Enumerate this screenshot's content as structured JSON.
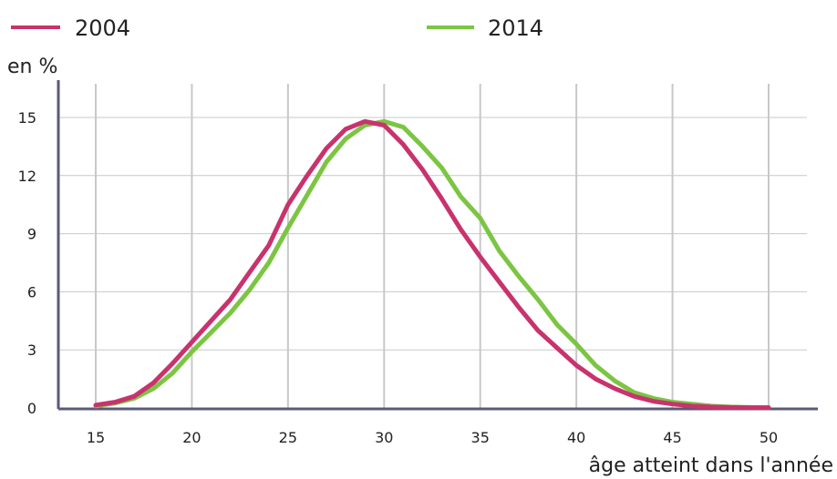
{
  "chart_data": {
    "type": "line",
    "ylabel": "en %",
    "xlabel": "âge atteint dans l'année",
    "xlim": [
      15,
      50
    ],
    "ylim": [
      0,
      15
    ],
    "xticks": [
      15,
      20,
      25,
      30,
      35,
      40,
      45,
      50
    ],
    "yticks": [
      0,
      3,
      6,
      9,
      12,
      15
    ],
    "grid": "vertical and horizontal",
    "legend_position": "top",
    "series": [
      {
        "name": "2004",
        "color": "#c8336d",
        "x": [
          15,
          16,
          17,
          18,
          19,
          20,
          21,
          22,
          23,
          24,
          25,
          26,
          27,
          28,
          29,
          30,
          31,
          32,
          33,
          34,
          35,
          36,
          37,
          38,
          39,
          40,
          41,
          42,
          43,
          44,
          45,
          46,
          47,
          48,
          49,
          50
        ],
        "y": [
          0.15,
          0.3,
          0.6,
          1.3,
          2.3,
          3.4,
          4.5,
          5.6,
          7.0,
          8.4,
          10.5,
          12.0,
          13.4,
          14.4,
          14.8,
          14.6,
          13.6,
          12.3,
          10.8,
          9.2,
          7.8,
          6.5,
          5.2,
          4.0,
          3.1,
          2.2,
          1.5,
          1.0,
          0.6,
          0.35,
          0.2,
          0.1,
          0.05,
          0.03,
          0.02,
          0.02
        ]
      },
      {
        "name": "2014",
        "color": "#7cc543",
        "x": [
          15,
          16,
          17,
          18,
          19,
          20,
          21,
          22,
          23,
          24,
          25,
          26,
          27,
          28,
          29,
          30,
          31,
          32,
          33,
          34,
          35,
          36,
          37,
          38,
          39,
          40,
          41,
          42,
          43,
          44,
          45,
          46,
          47,
          48,
          49,
          50
        ],
        "y": [
          0.1,
          0.25,
          0.5,
          1.0,
          1.8,
          2.9,
          3.9,
          4.9,
          6.1,
          7.5,
          9.3,
          11.0,
          12.7,
          13.9,
          14.6,
          14.8,
          14.5,
          13.5,
          12.4,
          10.9,
          9.8,
          8.1,
          6.8,
          5.6,
          4.3,
          3.3,
          2.2,
          1.4,
          0.8,
          0.5,
          0.3,
          0.2,
          0.1,
          0.05,
          0.03,
          0.02
        ]
      }
    ]
  }
}
